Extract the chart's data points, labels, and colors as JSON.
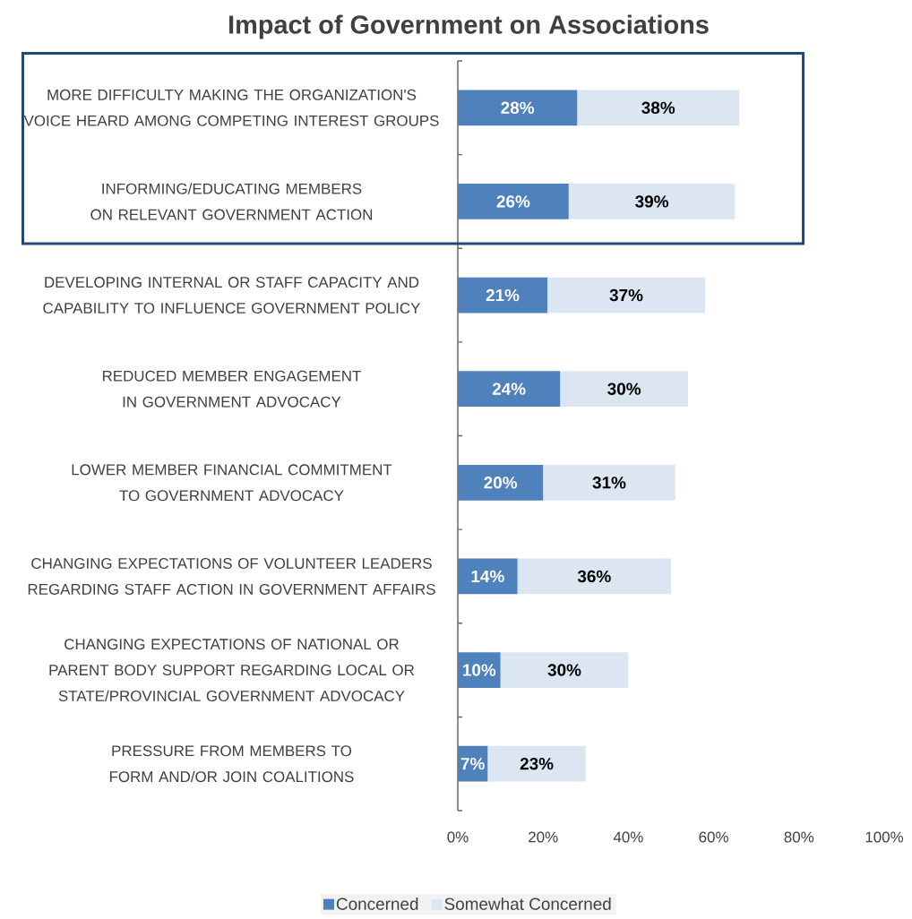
{
  "chart_data": {
    "type": "bar",
    "orientation": "horizontal",
    "stacked": true,
    "title": "Impact of Government on Associations",
    "categories": [
      "MORE DIFFICULTY MAKING THE ORGANIZATION'S VOICE HEARD AMONG COMPETING INTEREST GROUPS",
      "INFORMING/EDUCATING MEMBERS ON RELEVANT GOVERNMENT ACTION",
      "DEVELOPING INTERNAL OR STAFF CAPACITY AND CAPABILITY TO INFLUENCE GOVERNMENT POLICY",
      "REDUCED MEMBER ENGAGEMENT IN GOVERNMENT ADVOCACY",
      "LOWER MEMBER FINANCIAL COMMITMENT TO GOVERNMENT ADVOCACY",
      "CHANGING EXPECTATIONS OF VOLUNTEER LEADERS REGARDING STAFF ACTION IN GOVERNMENT AFFAIRS",
      "CHANGING EXPECTATIONS OF NATIONAL OR PARENT BODY SUPPORT REGARDING LOCAL OR STATE/PROVINCIAL GOVERNMENT ADVOCACY",
      "PRESSURE FROM MEMBERS TO FORM AND/OR JOIN COALITIONS"
    ],
    "series": [
      {
        "name": "Concerned",
        "color": "#4f81bd",
        "values": [
          28,
          26,
          21,
          24,
          20,
          14,
          10,
          7
        ],
        "value_labels": [
          "28%",
          "26%",
          "21%",
          "24%",
          "20%",
          "14%",
          "10%",
          "7%"
        ]
      },
      {
        "name": "Somewhat Concerned",
        "color": "#dce6f2",
        "values": [
          38,
          39,
          37,
          30,
          31,
          36,
          30,
          23
        ],
        "value_labels": [
          "38%",
          "39%",
          "37%",
          "30%",
          "31%",
          "36%",
          "30%",
          "23%"
        ]
      }
    ],
    "xlim": [
      0,
      100
    ],
    "xticks": [
      {
        "value": 0,
        "label": "0%"
      },
      {
        "value": 20,
        "label": "20%"
      },
      {
        "value": 40,
        "label": "40%"
      },
      {
        "value": 60,
        "label": "60%"
      },
      {
        "value": 80,
        "label": "80%"
      },
      {
        "value": 100,
        "label": "100%"
      }
    ],
    "legend": "bottom"
  }
}
